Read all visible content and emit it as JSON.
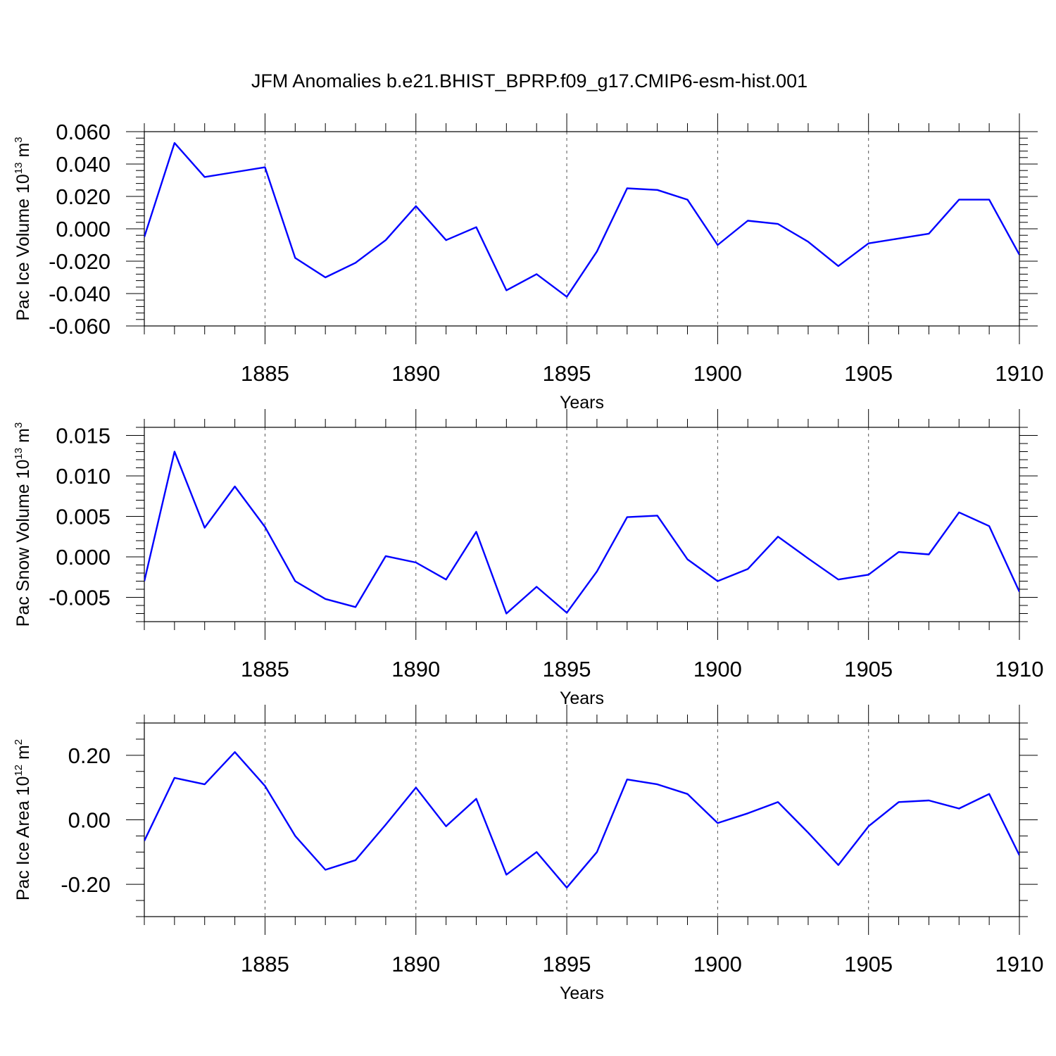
{
  "title": "JFM Anomalies b.e21.BHIST_BPRP.f09_g17.CMIP6-esm-hist.001",
  "colors": {
    "line": "#0000ff",
    "axis": "#000000",
    "grid": "#555555"
  },
  "chart_data": [
    {
      "type": "line",
      "xlabel": "Years",
      "ylabel": {
        "text": "Pac Ice Volume 10",
        "exp": "13",
        "unit": " m",
        "unit_exp": "3"
      },
      "xlim": [
        1881,
        1910
      ],
      "ylim": [
        -0.06,
        0.06
      ],
      "x_ticks": [
        1885,
        1890,
        1895,
        1900,
        1905,
        1910
      ],
      "x_minor_step": 1,
      "y_ticks": [
        -0.06,
        -0.04,
        -0.02,
        0.0,
        0.02,
        0.04,
        0.06
      ],
      "y_tick_labels": [
        "-0.060",
        "-0.040",
        "-0.020",
        "0.000",
        "0.020",
        "0.040",
        "0.060"
      ],
      "y_minor_step": 0.004,
      "grid": "dashed vertical at major x ticks",
      "x": [
        1881,
        1882,
        1883,
        1884,
        1885,
        1886,
        1887,
        1888,
        1889,
        1890,
        1891,
        1892,
        1893,
        1894,
        1895,
        1896,
        1897,
        1898,
        1899,
        1900,
        1901,
        1902,
        1903,
        1904,
        1905,
        1906,
        1907,
        1908,
        1909,
        1910
      ],
      "values": [
        -0.005,
        0.053,
        0.032,
        0.035,
        0.038,
        -0.018,
        -0.03,
        -0.021,
        -0.007,
        0.014,
        -0.007,
        0.001,
        -0.038,
        -0.028,
        -0.042,
        -0.014,
        0.025,
        0.024,
        0.018,
        -0.01,
        0.005,
        0.003,
        -0.008,
        -0.023,
        -0.009,
        -0.006,
        -0.003,
        0.018,
        0.018,
        -0.016
      ]
    },
    {
      "type": "line",
      "xlabel": "Years",
      "ylabel": {
        "text": "Pac Snow Volume 10",
        "exp": "13",
        "unit": " m",
        "unit_exp": "3"
      },
      "xlim": [
        1881,
        1910
      ],
      "ylim": [
        -0.008,
        0.016
      ],
      "x_ticks": [
        1885,
        1890,
        1895,
        1900,
        1905,
        1910
      ],
      "x_minor_step": 1,
      "y_ticks": [
        -0.005,
        0.0,
        0.005,
        0.01,
        0.015
      ],
      "y_tick_labels": [
        "-0.005",
        "0.000",
        "0.005",
        "0.010",
        "0.015"
      ],
      "y_minor_step": 0.001,
      "grid": "dashed vertical at major x ticks",
      "x": [
        1881,
        1882,
        1883,
        1884,
        1885,
        1886,
        1887,
        1888,
        1889,
        1890,
        1891,
        1892,
        1893,
        1894,
        1895,
        1896,
        1897,
        1898,
        1899,
        1900,
        1901,
        1902,
        1903,
        1904,
        1905,
        1906,
        1907,
        1908,
        1909,
        1910
      ],
      "values": [
        -0.003,
        0.013,
        0.0036,
        0.0087,
        0.0037,
        -0.003,
        -0.0052,
        -0.0062,
        0.0001,
        -0.0007,
        -0.0028,
        0.0031,
        -0.007,
        -0.0037,
        -0.0069,
        -0.0018,
        0.0049,
        0.0051,
        -0.0003,
        -0.003,
        -0.0015,
        0.0025,
        -0.0002,
        -0.0028,
        -0.0022,
        0.0006,
        0.0003,
        0.0055,
        0.0038,
        -0.0043
      ]
    },
    {
      "type": "line",
      "xlabel": "Years",
      "ylabel": {
        "text": "Pac Ice Area 10",
        "exp": "12",
        "unit": " m",
        "unit_exp": "2"
      },
      "xlim": [
        1881,
        1910
      ],
      "ylim": [
        -0.3,
        0.3
      ],
      "x_ticks": [
        1885,
        1890,
        1895,
        1900,
        1905,
        1910
      ],
      "x_minor_step": 1,
      "y_ticks": [
        -0.2,
        0.0,
        0.2
      ],
      "y_tick_labels": [
        "-0.20",
        "0.00",
        "0.20"
      ],
      "y_minor_step": 0.05,
      "grid": "dashed vertical at major x ticks",
      "x": [
        1881,
        1882,
        1883,
        1884,
        1885,
        1886,
        1887,
        1888,
        1889,
        1890,
        1891,
        1892,
        1893,
        1894,
        1895,
        1896,
        1897,
        1898,
        1899,
        1900,
        1901,
        1902,
        1903,
        1904,
        1905,
        1906,
        1907,
        1908,
        1909,
        1910
      ],
      "values": [
        -0.065,
        0.13,
        0.11,
        0.21,
        0.105,
        -0.05,
        -0.155,
        -0.125,
        -0.015,
        0.1,
        -0.02,
        0.065,
        -0.17,
        -0.1,
        -0.21,
        -0.1,
        0.125,
        0.11,
        0.08,
        -0.01,
        0.02,
        0.055,
        -0.04,
        -0.14,
        -0.02,
        0.055,
        0.06,
        0.035,
        0.08,
        -0.11
      ]
    }
  ]
}
